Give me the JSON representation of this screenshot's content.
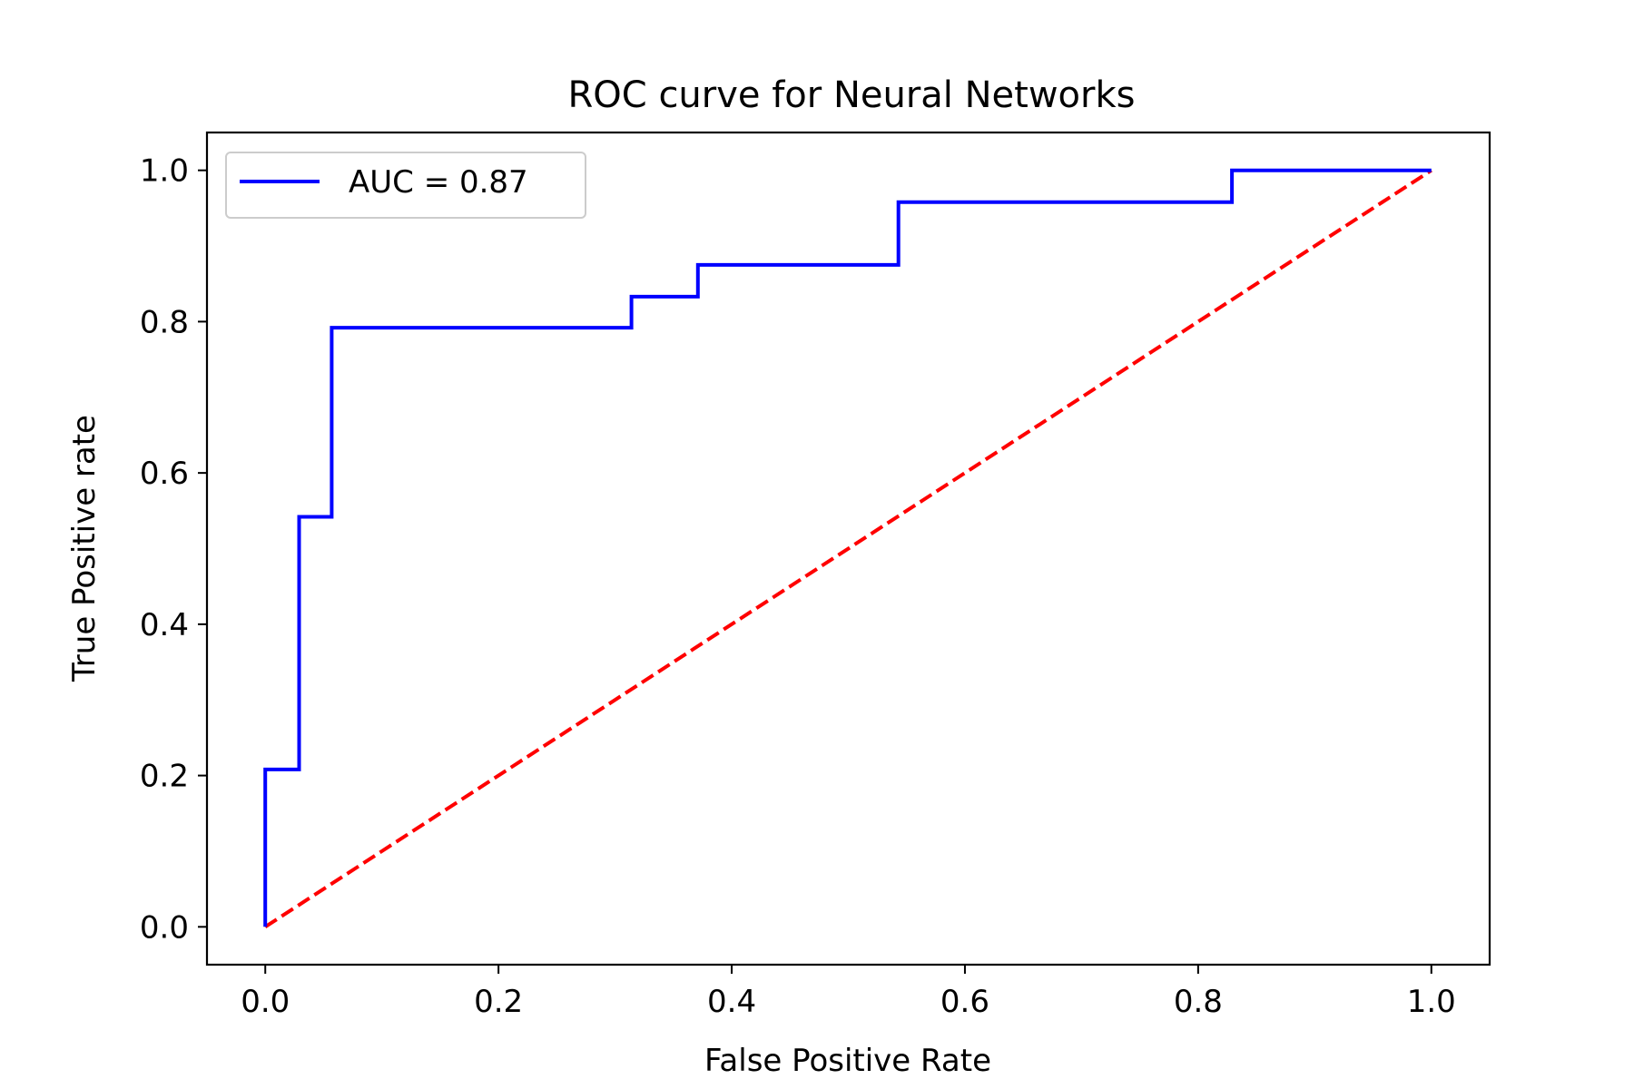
{
  "chart_data": {
    "type": "line",
    "title": "ROC curve for Neural Networks",
    "xlabel": "False Positive Rate",
    "ylabel": "True Positive rate",
    "xlim": [
      -0.05,
      1.05
    ],
    "ylim": [
      -0.05,
      1.05
    ],
    "xticks": [
      0.0,
      0.2,
      0.4,
      0.6,
      0.8,
      1.0
    ],
    "yticks": [
      0.0,
      0.2,
      0.4,
      0.6,
      0.8,
      1.0
    ],
    "xtick_labels": [
      "0.0",
      "0.2",
      "0.4",
      "0.6",
      "0.8",
      "1.0"
    ],
    "ytick_labels": [
      "0.0",
      "0.2",
      "0.4",
      "0.6",
      "0.8",
      "1.0"
    ],
    "grid": false,
    "legend_position": "top-left",
    "series": [
      {
        "name": "AUC = 0.87",
        "color": "#0000ff",
        "style": "solid",
        "x": [
          0.0,
          0.0,
          0.029,
          0.029,
          0.057,
          0.057,
          0.314,
          0.314,
          0.371,
          0.371,
          0.543,
          0.543,
          0.829,
          0.829,
          1.0
        ],
        "y": [
          0.0,
          0.208,
          0.208,
          0.542,
          0.542,
          0.792,
          0.792,
          0.833,
          0.833,
          0.875,
          0.875,
          0.958,
          0.958,
          1.0,
          1.0
        ]
      },
      {
        "color": "#ff0000",
        "style": "dashed",
        "x": [
          0.0,
          1.0
        ],
        "y": [
          0.0,
          1.0
        ]
      }
    ]
  }
}
